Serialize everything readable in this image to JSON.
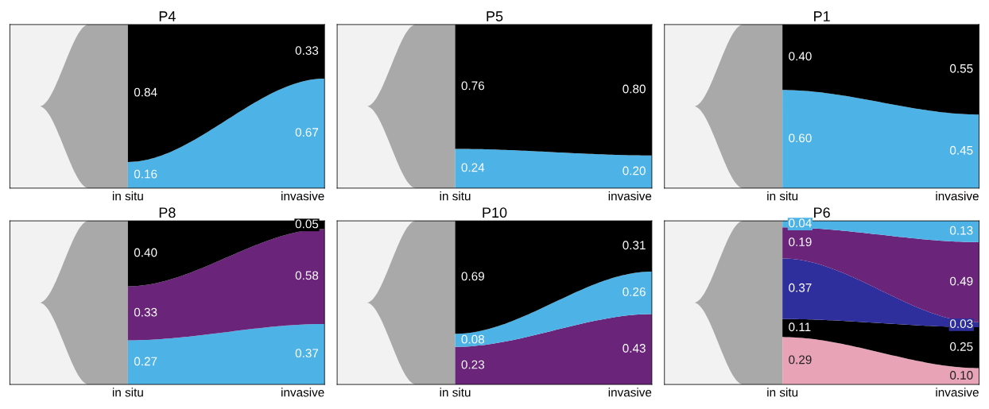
{
  "chart_data": [
    {
      "type": "other",
      "title": "P4",
      "categories": [
        "in situ",
        "invasive"
      ],
      "series": [
        {
          "color": "#4db3e6",
          "values": [
            0.16,
            0.67
          ],
          "value_labels": [
            "0.16",
            "0.67"
          ]
        },
        {
          "color": "#000000",
          "values": [
            0.84,
            0.33
          ],
          "value_labels": [
            "0.84",
            "0.33"
          ]
        }
      ]
    },
    {
      "type": "other",
      "title": "P5",
      "categories": [
        "in situ",
        "invasive"
      ],
      "series": [
        {
          "color": "#4db3e6",
          "values": [
            0.24,
            0.2
          ],
          "value_labels": [
            "0.24",
            "0.20"
          ]
        },
        {
          "color": "#000000",
          "values": [
            0.76,
            0.8
          ],
          "value_labels": [
            "0.76",
            "0.80"
          ]
        }
      ]
    },
    {
      "type": "other",
      "title": "P1",
      "categories": [
        "in situ",
        "invasive"
      ],
      "series": [
        {
          "color": "#4db3e6",
          "values": [
            0.6,
            0.45
          ],
          "value_labels": [
            "0.60",
            "0.45"
          ]
        },
        {
          "color": "#000000",
          "values": [
            0.4,
            0.55
          ],
          "value_labels": [
            "0.40",
            "0.55"
          ]
        }
      ]
    },
    {
      "type": "other",
      "title": "P8",
      "categories": [
        "in situ",
        "invasive"
      ],
      "series": [
        {
          "color": "#4db3e6",
          "values": [
            0.27,
            0.37
          ],
          "value_labels": [
            "0.27",
            "0.37"
          ]
        },
        {
          "color": "#6a2479",
          "values": [
            0.33,
            0.58
          ],
          "value_labels": [
            "0.33",
            "0.58"
          ]
        },
        {
          "color": "#000000",
          "values": [
            0.4,
            0.05
          ],
          "value_labels": [
            "0.40",
            "0.05"
          ]
        }
      ]
    },
    {
      "type": "other",
      "title": "P10",
      "categories": [
        "in situ",
        "invasive"
      ],
      "series": [
        {
          "color": "#6a2479",
          "values": [
            0.23,
            0.43
          ],
          "value_labels": [
            "0.23",
            "0.43"
          ]
        },
        {
          "color": "#4db3e6",
          "values": [
            0.08,
            0.26
          ],
          "value_labels": [
            "0.08",
            "0.26"
          ]
        },
        {
          "color": "#000000",
          "values": [
            0.69,
            0.31
          ],
          "value_labels": [
            "0.69",
            "0.31"
          ]
        }
      ]
    },
    {
      "type": "other",
      "title": "P6",
      "categories": [
        "in situ",
        "invasive"
      ],
      "series": [
        {
          "color": "#e8a3b6",
          "values": [
            0.29,
            0.1
          ],
          "value_labels": [
            "0.29",
            "0.10"
          ]
        },
        {
          "color": "#000000",
          "values": [
            0.11,
            0.25
          ],
          "value_labels": [
            "0.11",
            "0.25"
          ]
        },
        {
          "color": "#2e2f9c",
          "values": [
            0.37,
            0.03
          ],
          "value_labels": [
            "0.37",
            "0.03"
          ]
        },
        {
          "color": "#6a2479",
          "values": [
            0.19,
            0.49
          ],
          "value_labels": [
            "0.19",
            "0.49"
          ]
        },
        {
          "color": "#4db3e6",
          "values": [
            0.04,
            0.13
          ],
          "value_labels": [
            "0.04",
            "0.13"
          ]
        }
      ]
    }
  ]
}
